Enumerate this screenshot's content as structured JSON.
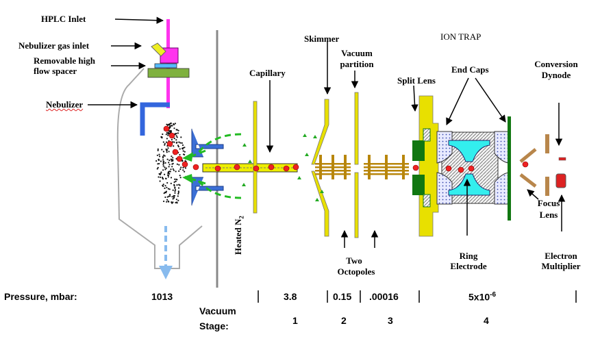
{
  "labels": {
    "hplc_inlet": "HPLC Inlet",
    "nebulizer_gas_inlet": "Nebulizer gas inlet",
    "removable_spacer_1": "Removable high",
    "removable_spacer_2": "flow spacer",
    "nebulizer": "Nebulizer",
    "capillary": "Capillary",
    "skimmer": "Skimmer",
    "vacuum_partition_1": "Vacuum",
    "vacuum_partition_2": "partition",
    "ion_trap": "ION TRAP",
    "end_caps": "End Caps",
    "split_lens": "Split Lens",
    "conversion_dynode_1": "Conversion",
    "conversion_dynode_2": "Dynode",
    "heated_n2": "Heated N",
    "heated_n2_sub": "2",
    "two_octopoles_1": "Two",
    "two_octopoles_2": "Octopoles",
    "ring_electrode_1": "Ring",
    "ring_electrode_2": "Electrode",
    "focus_lens_1": "Focus",
    "focus_lens_2": "Lens",
    "electron_multiplier_1": "Electron",
    "electron_multiplier_2": "Multiplier"
  },
  "pressure": {
    "label": "Pressure, mbar:",
    "values": [
      "1013",
      "3.8",
      "0.15",
      ".00016",
      "5x10",
      "-6"
    ]
  },
  "vacuum_stage": {
    "label_1": "Vacuum",
    "label_2": "Stage:",
    "stages": [
      "1",
      "2",
      "3",
      "4"
    ]
  },
  "colors": {
    "hplc_inlet": "#ff33ee",
    "electrode": "#e8e000",
    "nebulizer_tube": "#3366dd",
    "sheath_gas": "#22aa22",
    "octopole": "#b8860b",
    "ion": "#ee2222",
    "ring_electrode": "#33eeee",
    "end_cap": "#8888ee",
    "split_lens": "#117711"
  }
}
